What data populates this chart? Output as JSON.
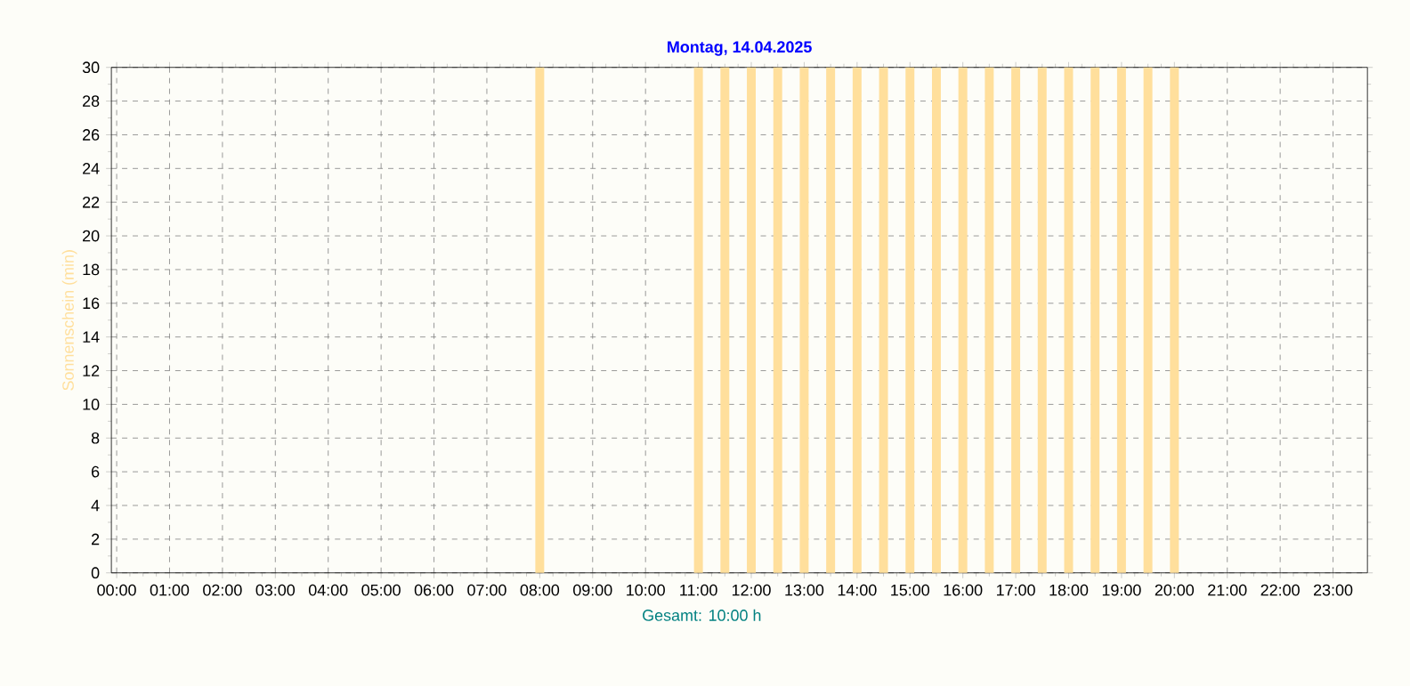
{
  "chart_data": {
    "type": "bar",
    "title": "Montag, 14.04.2025",
    "ylabel": "Sonnenschein  (min)",
    "annotations": [
      "Gesamt: 10:00 h"
    ],
    "x": [
      8,
      11,
      11.5,
      12,
      12.5,
      13,
      13.5,
      14,
      14.5,
      15,
      15.5,
      16,
      16.5,
      17,
      17.5,
      18,
      18.5,
      19,
      19.5,
      20
    ],
    "values": [
      30,
      30,
      30,
      30,
      30,
      30,
      30,
      30,
      30,
      30,
      30,
      30,
      30,
      30,
      30,
      30,
      30,
      30,
      30,
      30
    ],
    "color": "#ffdf9c",
    "xlim": [
      -0.1,
      23.65
    ],
    "ylim": [
      0,
      30
    ],
    "xticks": [
      {
        "value": 0,
        "label": "00:00"
      },
      {
        "value": 1,
        "label": "01:00"
      },
      {
        "value": 2,
        "label": "02:00"
      },
      {
        "value": 3,
        "label": "03:00"
      },
      {
        "value": 4,
        "label": "04:00"
      },
      {
        "value": 5,
        "label": "05:00"
      },
      {
        "value": 6,
        "label": "06:00"
      },
      {
        "value": 7,
        "label": "07:00"
      },
      {
        "value": 8,
        "label": "08:00"
      },
      {
        "value": 9,
        "label": "09:00"
      },
      {
        "value": 10,
        "label": "10:00"
      },
      {
        "value": 11,
        "label": "11:00"
      },
      {
        "value": 12,
        "label": "12:00"
      },
      {
        "value": 13,
        "label": "13:00"
      },
      {
        "value": 14,
        "label": "14:00"
      },
      {
        "value": 15,
        "label": "15:00"
      },
      {
        "value": 16,
        "label": "16:00"
      },
      {
        "value": 17,
        "label": "17:00"
      },
      {
        "value": 18,
        "label": "18:00"
      },
      {
        "value": 19,
        "label": "19:00"
      },
      {
        "value": 20,
        "label": "20:00"
      },
      {
        "value": 21,
        "label": "21:00"
      },
      {
        "value": 22,
        "label": "22:00"
      },
      {
        "value": 23,
        "label": "23:00"
      }
    ],
    "yticks": [
      0,
      2,
      4,
      6,
      8,
      10,
      12,
      14,
      16,
      18,
      20,
      22,
      24,
      26,
      28,
      30
    ],
    "grid": true
  }
}
